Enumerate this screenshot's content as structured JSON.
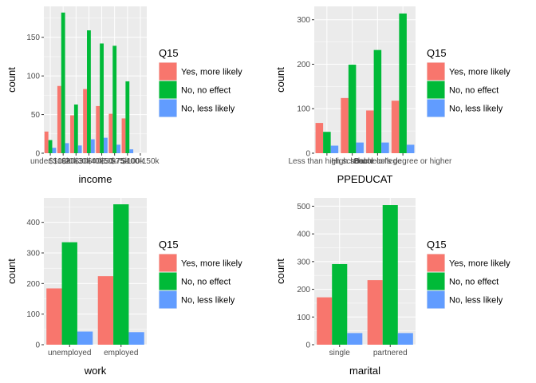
{
  "legend": {
    "title": "Q15",
    "entries": [
      {
        "label": "Yes, more likely",
        "color": "#F8766D"
      },
      {
        "label": "No, no effect",
        "color": "#00BA38"
      },
      {
        "label": "No, less likely",
        "color": "#619CFF"
      }
    ]
  },
  "theme": {
    "panel_bg": "#EBEBEB",
    "grid": "#FFFFFF"
  },
  "chart_data": [
    {
      "type": "bar",
      "xlabel": "income",
      "ylabel": "count",
      "ylim": [
        0,
        190
      ],
      "yticks": [
        0,
        50,
        100,
        150
      ],
      "categories": [
        "under $10k",
        "$10-20k",
        "$20-30k",
        "$30-40k",
        "$40-50k",
        "$50-75k",
        "$75-100k",
        "$100-150k"
      ],
      "category_labels": [
        "under $10k",
        "$10-20k",
        "$20-30k",
        "$30-40k",
        "$40-50k",
        "$50-75k",
        "$75-100k",
        "$100-150k"
      ],
      "series": [
        {
          "name": "Yes, more likely",
          "values": [
            28,
            87,
            49,
            83,
            61,
            51,
            45,
            0
          ]
        },
        {
          "name": "No, no effect",
          "values": [
            17,
            182,
            63,
            159,
            142,
            139,
            93,
            0
          ]
        },
        {
          "name": "No, less likely",
          "values": [
            7,
            13,
            10,
            18,
            20,
            11,
            5,
            0
          ]
        }
      ]
    },
    {
      "type": "bar",
      "xlabel": "PPEDUCAT",
      "ylabel": "count",
      "ylim": [
        0,
        330
      ],
      "yticks": [
        0,
        100,
        200,
        300
      ],
      "categories": [
        "Less than high school",
        "High school",
        "Some college",
        "Bachelor's degree or higher"
      ],
      "category_labels": [
        "Less than high school",
        "High school",
        "Some college",
        "Bachelor's degree or higher"
      ],
      "series": [
        {
          "name": "Yes, more likely",
          "values": [
            68,
            124,
            96,
            118
          ]
        },
        {
          "name": "No, no effect",
          "values": [
            48,
            199,
            232,
            314
          ]
        },
        {
          "name": "No, less likely",
          "values": [
            17,
            24,
            24,
            19
          ]
        }
      ]
    },
    {
      "type": "bar",
      "xlabel": "work",
      "ylabel": "count",
      "ylim": [
        0,
        480
      ],
      "yticks": [
        0,
        100,
        200,
        300,
        400
      ],
      "categories": [
        "unemployed",
        "employed"
      ],
      "category_labels": [
        "unemployed",
        "employed"
      ],
      "series": [
        {
          "name": "Yes, more likely",
          "values": [
            184,
            224
          ]
        },
        {
          "name": "No, no effect",
          "values": [
            335,
            459
          ]
        },
        {
          "name": "No, less likely",
          "values": [
            43,
            41
          ]
        }
      ]
    },
    {
      "type": "bar",
      "xlabel": "marital",
      "ylabel": "count",
      "ylim": [
        0,
        530
      ],
      "yticks": [
        0,
        100,
        200,
        300,
        400,
        500
      ],
      "categories": [
        "single",
        "partnered"
      ],
      "category_labels": [
        "single",
        "partnered"
      ],
      "series": [
        {
          "name": "Yes, more likely",
          "values": [
            171,
            233
          ]
        },
        {
          "name": "No, no effect",
          "values": [
            291,
            504
          ]
        },
        {
          "name": "No, less likely",
          "values": [
            42,
            42
          ]
        }
      ]
    }
  ]
}
